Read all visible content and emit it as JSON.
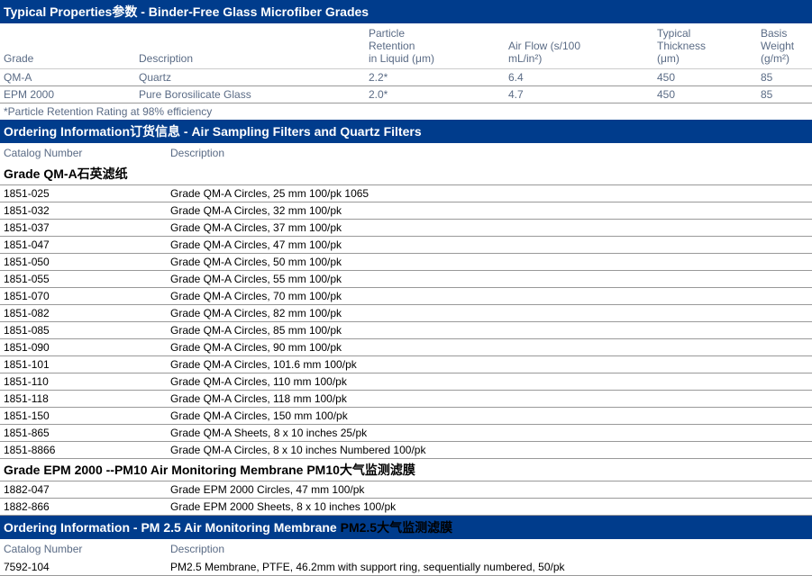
{
  "colors": {
    "header_bg": "#003C8C",
    "header_text": "#ffffff",
    "muted_text": "#5a6b85"
  },
  "properties": {
    "title": "Typical Properties参数 - Binder-Free Glass Microfiber Grades",
    "columns": {
      "grade": "Grade",
      "description": "Description",
      "particle": "Particle\nRetention\nin Liquid (μm)",
      "airflow": "Air Flow (s/100\nmL/in²)",
      "thickness": "Typical\nThickness\n(μm)",
      "basis": "Basis\nWeight\n(g/m²)"
    },
    "rows": [
      {
        "grade": "QM-A",
        "description": "Quartz",
        "particle": "2.2*",
        "airflow": "6.4",
        "thickness": "450",
        "basis": "85"
      },
      {
        "grade": "EPM 2000",
        "description": "Pure Borosilicate Glass",
        "particle": "2.0*",
        "airflow": "4.7",
        "thickness": "450",
        "basis": "85"
      }
    ],
    "footnote": "*Particle Retention Rating at 98% efficiency"
  },
  "ordering1": {
    "title": "Ordering Information订货信息 - Air Sampling Filters and Quartz Filters",
    "columns": {
      "catalog": "Catalog Number",
      "description": "Description"
    },
    "groups": [
      {
        "title": "Grade QM-A石英滤纸",
        "rows": [
          {
            "catalog": "1851-025",
            "description": "Grade QM-A Circles, 25 mm 100/pk 1065"
          },
          {
            "catalog": "1851-032",
            "description": "Grade QM-A Circles, 32 mm 100/pk"
          },
          {
            "catalog": "1851-037",
            "description": "Grade QM-A Circles, 37 mm 100/pk"
          },
          {
            "catalog": "1851-047",
            "description": "Grade QM-A Circles, 47 mm 100/pk"
          },
          {
            "catalog": "1851-050",
            "description": "Grade QM-A Circles, 50 mm 100/pk"
          },
          {
            "catalog": "1851-055",
            "description": "Grade QM-A Circles, 55 mm 100/pk"
          },
          {
            "catalog": "1851-070",
            "description": "Grade QM-A Circles, 70 mm 100/pk"
          },
          {
            "catalog": "1851-082",
            "description": "Grade QM-A Circles, 82 mm 100/pk"
          },
          {
            "catalog": "1851-085",
            "description": "Grade QM-A Circles, 85 mm 100/pk"
          },
          {
            "catalog": "1851-090",
            "description": "Grade QM-A Circles, 90 mm 100/pk"
          },
          {
            "catalog": "1851-101",
            "description": "Grade QM-A Circles, 101.6 mm 100/pk"
          },
          {
            "catalog": "1851-110",
            "description": "Grade QM-A Circles, 110 mm 100/pk"
          },
          {
            "catalog": "1851-118",
            "description": "Grade QM-A Circles, 118 mm 100/pk"
          },
          {
            "catalog": "1851-150",
            "description": "Grade QM-A Circles, 150 mm 100/pk"
          },
          {
            "catalog": "1851-865",
            "description": "Grade QM-A Sheets, 8 x 10 inches 25/pk"
          },
          {
            "catalog": "1851-8866",
            "description": "Grade QM-A Circles, 8 x 10 inches Numbered 100/pk"
          }
        ]
      },
      {
        "title": "Grade EPM 2000 --PM10 Air Monitoring Membrane  PM10大气监测滤膜",
        "rows": [
          {
            "catalog": "1882-047",
            "description": "Grade EPM 2000 Circles, 47 mm 100/pk"
          },
          {
            "catalog": "1882-866",
            "description": "Grade EPM 2000 Sheets, 8 x 10 inches 100/pk"
          }
        ]
      }
    ]
  },
  "ordering2": {
    "title_white": "Ordering Information - PM 2.5 Air Monitoring Membrane  ",
    "title_suffix": "PM2.5大气监测滤膜",
    "columns": {
      "catalog": "Catalog Number",
      "description": "Description"
    },
    "rows": [
      {
        "catalog": "7592-104",
        "description": "PM2.5 Membrane, PTFE, 46.2mm with support ring, sequentially numbered, 50/pk"
      }
    ]
  }
}
